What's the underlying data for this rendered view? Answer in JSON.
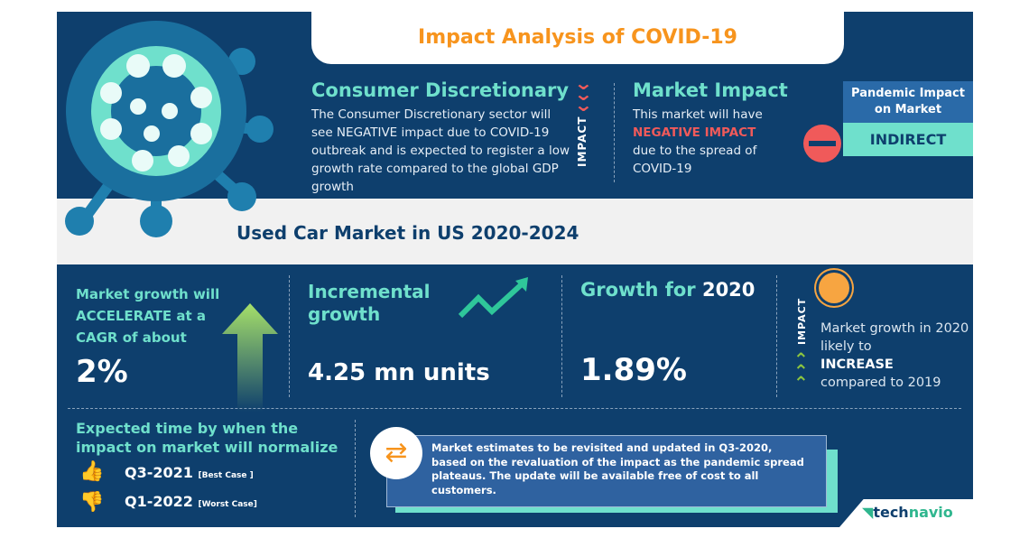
{
  "header": {
    "title": "Impact Analysis of COVID-19"
  },
  "sector": {
    "heading": "Consumer Discretionary",
    "text": "The Consumer Discretionary sector will see NEGATIVE impact due to COVID-19 outbreak and is expected to register a low growth rate compared to the global GDP growth",
    "impact_label": "IMPACT"
  },
  "market_impact": {
    "heading": "Market Impact",
    "line1": "This market will have",
    "highlight": "NEGATIVE IMPACT",
    "line2": "due to the spread of COVID-19"
  },
  "pandemic": {
    "label": "Pandemic Impact on Market",
    "value": "INDIRECT"
  },
  "market_title": "Used Car Market in US 2020-2024",
  "stats": {
    "cagr": {
      "text": "Market growth will ACCELERATE at a CAGR of about",
      "value": "2%"
    },
    "incremental": {
      "label": "Incremental growth",
      "value": "4.25 mn units"
    },
    "growth2020": {
      "label": "Growth for",
      "year": "2020",
      "value": "1.89%"
    },
    "impact": {
      "label": "IMPACT",
      "line1": "Market growth in 2020 likely to",
      "highlight": "INCREASE",
      "line2": "compared to 2019"
    }
  },
  "normalize": {
    "heading": "Expected time by when the impact on market will normalize",
    "best": {
      "value": "Q3-2021",
      "note": "[Best Case ]"
    },
    "worst": {
      "value": "Q1-2022",
      "note": "[Worst Case]"
    }
  },
  "notice": "Market estimates to be revisited and updated in Q3-2020, based on the revaluation of the impact as the pandemic spread plateaus. The update will be available free of cost to all customers.",
  "brand": {
    "name_a": "tech",
    "name_b": "navio"
  },
  "colors": {
    "navy": "#0e3f6d",
    "teal": "#6fe0cc",
    "orange": "#f7941d",
    "red": "#f05a5a",
    "green": "#8dc63f"
  }
}
